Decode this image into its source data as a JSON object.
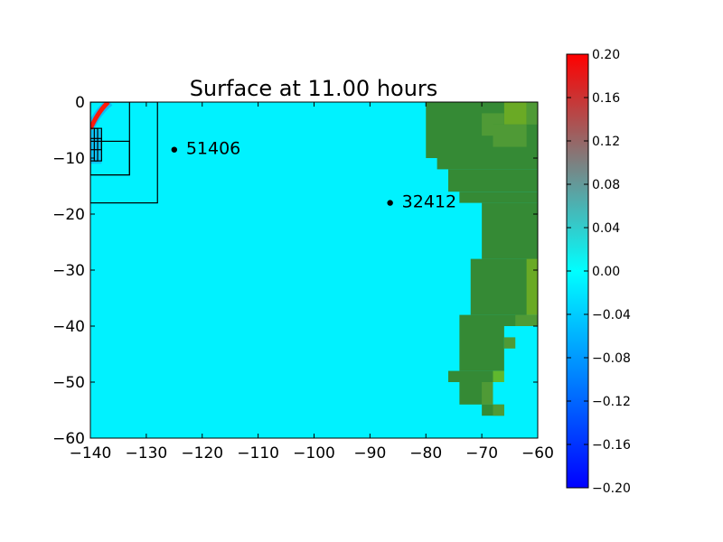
{
  "chart_data": {
    "type": "heatmap",
    "title": "Surface at 11.00 hours",
    "xlabel": "",
    "ylabel": "",
    "xlim": [
      -140,
      -60
    ],
    "ylim": [
      -60,
      0
    ],
    "x_ticks": [
      -140,
      -130,
      -120,
      -110,
      -100,
      -90,
      -80,
      -70,
      -60
    ],
    "y_ticks": [
      0,
      -10,
      -20,
      -30,
      -40,
      -50,
      -60
    ],
    "x_tick_labels": [
      "−140",
      "−130",
      "−120",
      "−110",
      "−100",
      "−90",
      "−80",
      "−70",
      "−60"
    ],
    "y_tick_labels": [
      "0",
      "−10",
      "−20",
      "−30",
      "−40",
      "−50",
      "−60"
    ],
    "colorbar": {
      "min": -0.2,
      "max": 0.2,
      "ticks": [
        0.2,
        0.16,
        0.12,
        0.08,
        0.04,
        0.0,
        -0.04,
        -0.08,
        -0.12,
        -0.16,
        -0.2
      ],
      "tick_labels": [
        "0.20",
        "0.16",
        "0.12",
        "0.08",
        "0.04",
        "0.00",
        "−0.04",
        "−0.08",
        "−0.12",
        "−0.16",
        "−0.20"
      ],
      "colors": [
        "#0000ff",
        "#00ffff",
        "#ff0000"
      ]
    },
    "background_value": 0.0,
    "colors": {
      "ocean": "#00f2ff",
      "land": "#358a35",
      "land_light": "#4f9a36",
      "land_yellow": "#6aaa25",
      "land_bright": "#60b82e",
      "wave_red": "#ff1a0a",
      "wave_blue": "#1c94ee"
    },
    "gauges": [
      {
        "name": "51406",
        "x": -125,
        "y": -8.5
      },
      {
        "name": "32412",
        "x": -86.4,
        "y": -18
      }
    ],
    "grid_boxes": [
      {
        "x0": -140,
        "x1": -128,
        "y0": -18,
        "y1": 0
      },
      {
        "x0": -140,
        "x1": -133,
        "y0": -13,
        "y1": 0
      },
      {
        "x0": -140,
        "x1": -133,
        "y0": -13,
        "y1": -7
      },
      {
        "x0": -140,
        "x1": -138,
        "y0": -10.5,
        "y1": -4.7
      },
      {
        "x0": -139.3,
        "x1": -138.7,
        "y0": -10.5,
        "y1": -4.7
      },
      {
        "x0": -140,
        "x1": -138,
        "y0": -8.5,
        "y1": -6.5
      }
    ],
    "land_cells_lon_ranges": [
      {
        "lat_top": 0,
        "lat_bot": -10,
        "lon_from": -80,
        "lon_to": -60
      },
      {
        "lat_top": -10,
        "lat_bot": -12,
        "lon_from": -78,
        "lon_to": -60
      },
      {
        "lat_top": -12,
        "lat_bot": -16,
        "lon_from": -76,
        "lon_to": -60
      },
      {
        "lat_top": -16,
        "lat_bot": -18,
        "lon_from": -74,
        "lon_to": -60
      },
      {
        "lat_top": -18,
        "lat_bot": -28,
        "lon_from": -70,
        "lon_to": -60
      },
      {
        "lat_top": -28,
        "lat_bot": -38,
        "lon_from": -72,
        "lon_to": -60
      },
      {
        "lat_top": -38,
        "lat_bot": -40,
        "lon_from": -74,
        "lon_to": -62
      },
      {
        "lat_top": -40,
        "lat_bot": -48,
        "lon_from": -74,
        "lon_to": -66
      },
      {
        "lat_top": -48,
        "lat_bot": -50,
        "lon_from": -76,
        "lon_to": -68
      },
      {
        "lat_top": -50,
        "lat_bot": -54,
        "lon_from": -74,
        "lon_to": -68
      },
      {
        "lat_top": -54,
        "lat_bot": -56,
        "lon_from": -70,
        "lon_to": -66
      }
    ],
    "land_highlights": [
      {
        "x0": -66,
        "x1": -62,
        "y0": 0,
        "y1": -4,
        "tone": "land_yellow"
      },
      {
        "x0": -68,
        "x1": -66,
        "y0": -2,
        "y1": -4,
        "tone": "land_light"
      },
      {
        "x0": -70,
        "x1": -68,
        "y0": -2,
        "y1": -6,
        "tone": "land_light"
      },
      {
        "x0": -68,
        "x1": -62,
        "y0": -4,
        "y1": -8,
        "tone": "land_light"
      },
      {
        "x0": -62,
        "x1": -60,
        "y0": 0,
        "y1": -4,
        "tone": "land_light"
      },
      {
        "x0": -62,
        "x1": -60,
        "y0": -28,
        "y1": -38,
        "tone": "land_yellow"
      },
      {
        "x0": -64,
        "x1": -60,
        "y0": -38,
        "y1": -40,
        "tone": "land_light"
      },
      {
        "x0": -66,
        "x1": -64,
        "y0": -42,
        "y1": -44,
        "tone": "land_light"
      },
      {
        "x0": -68,
        "x1": -66,
        "y0": -48,
        "y1": -50,
        "tone": "land_bright"
      },
      {
        "x0": -70,
        "x1": -68,
        "y0": -50,
        "y1": -54,
        "tone": "land_light"
      },
      {
        "x0": -68,
        "x1": -66,
        "y0": -54,
        "y1": -56,
        "tone": "land_light"
      }
    ]
  }
}
